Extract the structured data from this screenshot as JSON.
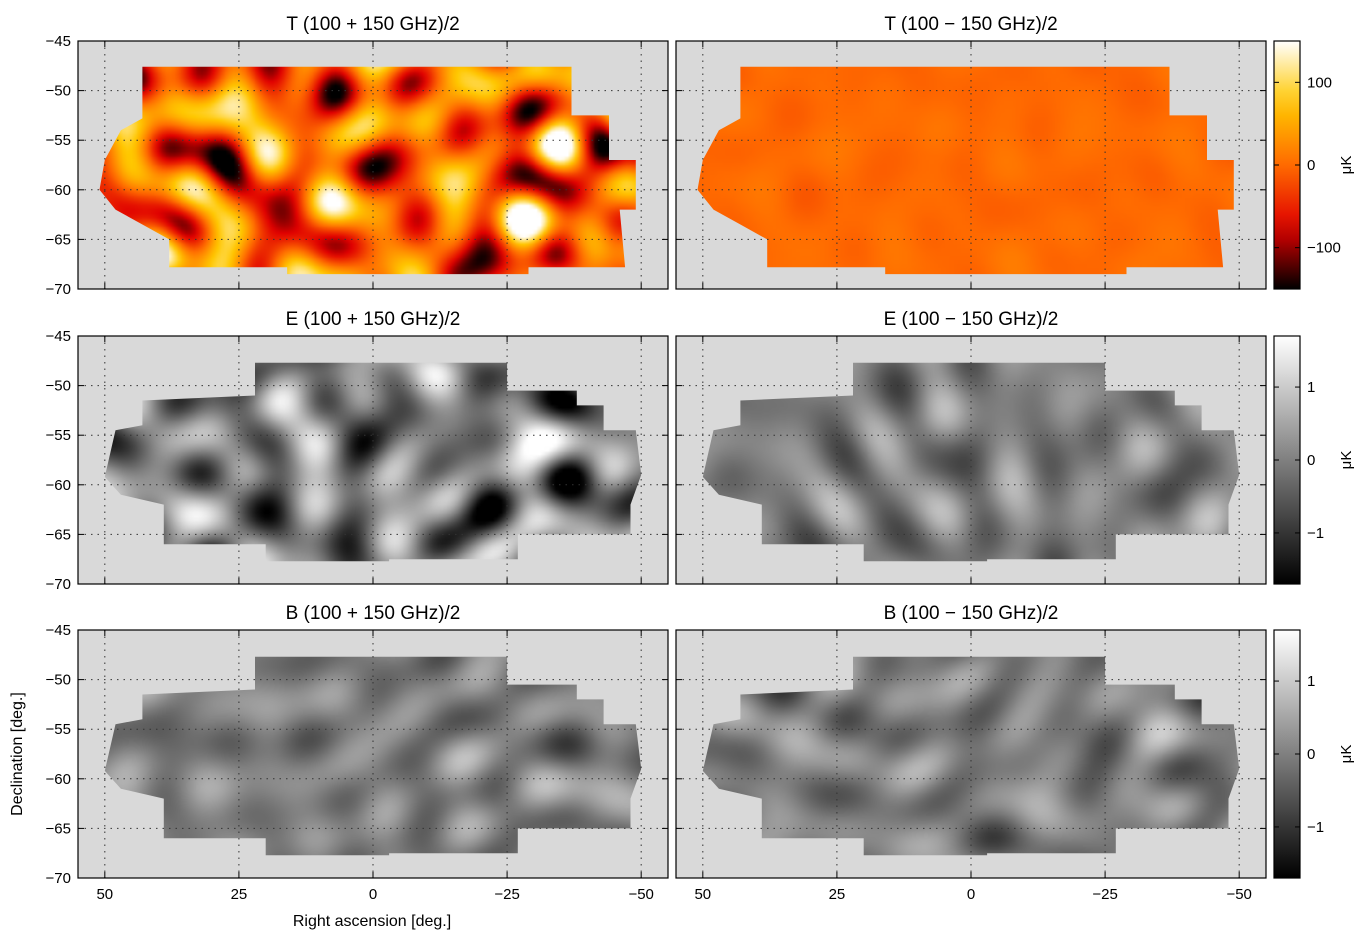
{
  "figure": {
    "xlabel": "Right ascension [deg.]",
    "ylabel": "Declination [deg.]"
  },
  "chart_data": {
    "type": "heatmap",
    "grid": true,
    "x_range": [
      55,
      -55
    ],
    "y_range": [
      -70,
      -45
    ],
    "x_ticks": [
      50,
      25,
      0,
      -25,
      -50
    ],
    "x_tick_labels": [
      "50",
      "25",
      "0",
      "−25",
      "−50"
    ],
    "y_ticks": [
      -45,
      -50,
      -55,
      -60,
      -65,
      -70
    ],
    "y_tick_labels": [
      "−45",
      "−50",
      "−55",
      "−60",
      "−65",
      "−70"
    ],
    "panels": [
      {
        "id": "T_sum",
        "title": "T (100 + 150 GHz)/2",
        "palette": "hot",
        "amplitude": 1.0,
        "wide": false
      },
      {
        "id": "T_diff",
        "title": "T (100 − 150 GHz)/2",
        "palette": "hot",
        "amplitude": 0.06,
        "wide": false
      },
      {
        "id": "E_sum",
        "title": "E (100 + 150 GHz)/2",
        "palette": "gray",
        "amplitude": 1.0,
        "wide": true
      },
      {
        "id": "E_diff",
        "title": "E (100 − 150 GHz)/2",
        "palette": "gray",
        "amplitude": 0.35,
        "wide": true
      },
      {
        "id": "B_sum",
        "title": "B (100 + 150 GHz)/2",
        "palette": "gray",
        "amplitude": 0.35,
        "wide": true
      },
      {
        "id": "B_diff",
        "title": "B (100 − 150 GHz)/2",
        "palette": "gray",
        "amplitude": 0.38,
        "wide": true
      }
    ],
    "colorbars": [
      {
        "palette": "hot",
        "range": [
          -150,
          150
        ],
        "ticks": [
          100,
          0,
          -100
        ],
        "tick_labels": [
          "100",
          "0",
          "−100"
        ],
        "label": "μK"
      },
      {
        "palette": "gray",
        "range": [
          -1.7,
          1.7
        ],
        "ticks": [
          1,
          0,
          -1
        ],
        "tick_labels": [
          "1",
          "0",
          "−1"
        ],
        "label": "μK"
      },
      {
        "palette": "gray",
        "range": [
          -1.7,
          1.7
        ],
        "ticks": [
          1,
          0,
          -1
        ],
        "tick_labels": [
          "1",
          "0",
          "−1"
        ],
        "label": "μK"
      }
    ],
    "colors": {
      "background": "#d9d9d9",
      "grid": "#333333",
      "hot_stops": [
        "#000000",
        "#e00000",
        "#ff6a00",
        "#ffc800",
        "#ffffff"
      ]
    }
  }
}
